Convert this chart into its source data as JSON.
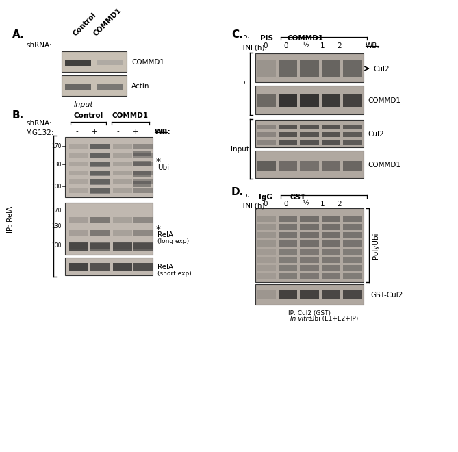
{
  "panel_A": {
    "label": "A.",
    "shrna_label": "shRNA:",
    "columns": [
      "Control",
      "COMMD1"
    ],
    "blot1_label": "COMMD1",
    "blot2_label": "Actin",
    "bottom_label": "Input"
  },
  "panel_B": {
    "label": "B.",
    "shrna_label": "shRNA:",
    "col_groups": [
      "Control",
      "COMMD1"
    ],
    "mg132_label": "MG132:",
    "mg132_vals": [
      "-",
      "+",
      "-",
      "+"
    ],
    "wb_label": "WB:",
    "blot1_label": "Ubi",
    "blot2_label": "RelA\n(long exp)",
    "blot3_label": "RelA\n(short exp)",
    "left_label": "IP: RelA",
    "mw_marks": [
      170,
      130,
      100
    ],
    "asterisk": "*"
  },
  "panel_C": {
    "label": "C.",
    "ip_label": "IP:",
    "ip_pis": "PIS",
    "ip_commd1": "COMMD1",
    "tnf_label": "TNF(h):",
    "tnf_vals": [
      "0",
      "0",
      "½",
      "1",
      "2"
    ],
    "wb_label": "WB:",
    "ip_left_label": "IP",
    "input_left_label": "Input",
    "blot1_label": "Cul2",
    "blot2_label": "COMMD1",
    "blot3_label": "Cul2",
    "blot4_label": "COMMD1",
    "arrow_label": "Cul2"
  },
  "panel_D": {
    "label": "D.",
    "ip_label": "IP:",
    "ip_igg": "IgG",
    "ip_gst": "GST",
    "tnf_label": "TNF(h):",
    "tnf_vals": [
      "0",
      "0",
      "½",
      "1",
      "2"
    ],
    "blot1_label": "PolyUbi",
    "blot2_label": "GST-Cul2",
    "bottom_label1": "IP: Cul2 (GST)",
    "bottom_label2_italic": "In vitro",
    "bottom_label2_normal": " Ubi (E1+E2+IP)"
  },
  "bg_color": "#ffffff",
  "text_color": "#000000"
}
